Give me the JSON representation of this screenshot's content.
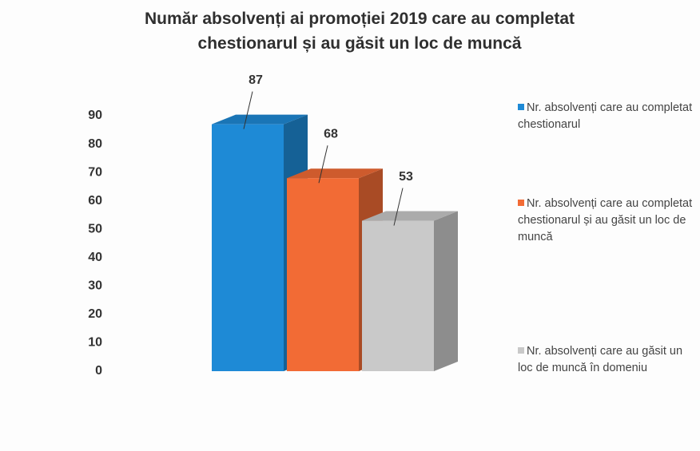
{
  "chart_data": {
    "type": "bar3d",
    "title": "Număr absolvenți ai promoției 2019 care au completat chestionarul și au găsit un loc de muncă",
    "series": [
      {
        "name": "Nr. absolvenți care au completat chestionarul",
        "color": "#1e8ad6",
        "values": [
          87
        ]
      },
      {
        "name": "Nr. absolvenți care au completat chestionarul și au găsit un loc de muncă",
        "color": "#f26b35",
        "values": [
          68
        ]
      },
      {
        "name": "Nr. absolvenți care au găsit un loc de muncă în domeniu",
        "color": "#c9c9c9",
        "values": [
          53
        ]
      }
    ],
    "ylim": [
      0,
      90
    ],
    "yticks": [
      0,
      10,
      20,
      30,
      40,
      50,
      60,
      70,
      80,
      90
    ],
    "grid": false,
    "legend": "right"
  }
}
